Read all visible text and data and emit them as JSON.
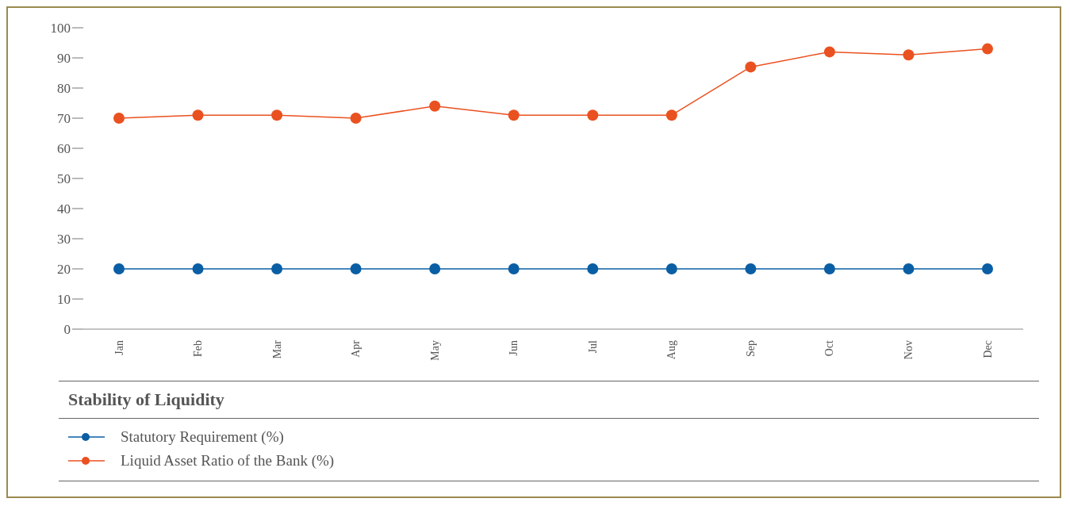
{
  "chart_data": {
    "type": "line",
    "title": "Stability of Liquidity",
    "categories": [
      "Jan",
      "Feb",
      "Mar",
      "Apr",
      "May",
      "Jun",
      "Jul",
      "Aug",
      "Sep",
      "Oct",
      "Nov",
      "Dec"
    ],
    "series": [
      {
        "name": "Statutory Requirement (%)",
        "color": "#0a5ea4",
        "values": [
          20,
          20,
          20,
          20,
          20,
          20,
          20,
          20,
          20,
          20,
          20,
          20
        ]
      },
      {
        "name": "Liquid Asset Ratio of the Bank  (%)",
        "color": "#ea5120",
        "values": [
          70,
          71,
          71,
          70,
          74,
          71,
          71,
          71,
          87,
          92,
          91,
          93
        ]
      }
    ],
    "ylim": [
      0,
      100
    ],
    "yticks": [
      0,
      10,
      20,
      30,
      40,
      50,
      60,
      70,
      80,
      90,
      100
    ],
    "grid": false,
    "legend": "bottom",
    "marker": "circle",
    "line_style": "solid"
  }
}
